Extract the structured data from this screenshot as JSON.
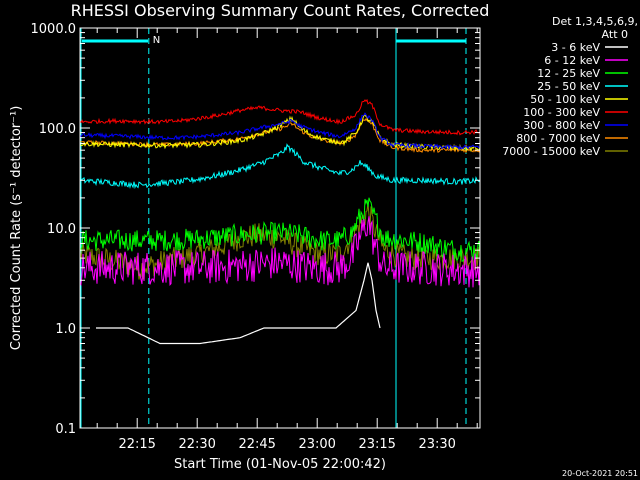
{
  "chart_data": {
    "type": "line",
    "title": "RHESSI Observing Summary Count Rates, Corrected",
    "xlabel": "Start Time (01-Nov-05 22:00:42)",
    "ylabel": "Corrected Count Rate (s⁻¹ detector⁻¹)",
    "yscale": "log",
    "ylim": [
      0.1,
      1000.0
    ],
    "xlim_minutes": [
      0,
      100
    ],
    "x_ticks": [
      {
        "label": "22:15",
        "minute": 14.3
      },
      {
        "label": "22:30",
        "minute": 29.3
      },
      {
        "label": "22:45",
        "minute": 44.3
      },
      {
        "label": "23:00",
        "minute": 59.3
      },
      {
        "label": "23:15",
        "minute": 74.3
      },
      {
        "label": "23:30",
        "minute": 89.3
      }
    ],
    "y_ticks": [
      "0.1",
      "1.0",
      "10.0",
      "100.0",
      "1000.0"
    ],
    "legend_header": [
      "Det 1,3,4,5,6,9,",
      "Att 0"
    ],
    "legend_position": "top-right, outside plot",
    "series": [
      {
        "name": "3 - 6 keV",
        "color": "#ffffff",
        "points": [
          [
            4,
            1.0
          ],
          [
            12,
            1.0
          ],
          [
            20,
            0.7
          ],
          [
            30,
            0.7
          ],
          [
            40,
            0.8
          ],
          [
            46,
            1.0
          ],
          [
            52,
            1.0
          ],
          [
            58,
            1.0
          ],
          [
            64,
            1.0
          ],
          [
            69,
            1.5
          ],
          [
            71,
            3.0
          ],
          [
            72,
            4.5
          ],
          [
            73,
            3.0
          ],
          [
            74,
            1.5
          ],
          [
            75,
            1.0
          ]
        ]
      },
      {
        "name": "6 - 12 keV",
        "color": "#ff00ff",
        "points": [
          [
            0,
            4.0
          ],
          [
            10,
            4.0
          ],
          [
            20,
            4.0
          ],
          [
            30,
            4.0
          ],
          [
            40,
            4.2
          ],
          [
            50,
            4.5
          ],
          [
            58,
            4.0
          ],
          [
            65,
            4.0
          ],
          [
            68,
            5.0
          ],
          [
            70,
            8.0
          ],
          [
            72,
            12.0
          ],
          [
            74,
            6.0
          ],
          [
            76,
            4.0
          ],
          [
            85,
            4.0
          ],
          [
            95,
            3.8
          ],
          [
            100,
            3.8
          ]
        ]
      },
      {
        "name": "12 - 25 keV",
        "color": "#00ff00",
        "points": [
          [
            0,
            7.5
          ],
          [
            10,
            7.5
          ],
          [
            20,
            7.5
          ],
          [
            30,
            7.8
          ],
          [
            40,
            8.5
          ],
          [
            50,
            9.0
          ],
          [
            55,
            8.5
          ],
          [
            60,
            7.5
          ],
          [
            65,
            7.5
          ],
          [
            68,
            9.0
          ],
          [
            70,
            13.0
          ],
          [
            72,
            17.0
          ],
          [
            74,
            12.0
          ],
          [
            76,
            8.0
          ],
          [
            82,
            7.5
          ],
          [
            87,
            7.0
          ],
          [
            90,
            6.5
          ],
          [
            95,
            6.0
          ],
          [
            100,
            6.0
          ]
        ]
      },
      {
        "name": "25 - 50 keV",
        "color": "#00ffff",
        "points": [
          [
            0,
            30
          ],
          [
            5,
            29
          ],
          [
            10,
            28
          ],
          [
            15,
            27
          ],
          [
            20,
            28
          ],
          [
            25,
            29
          ],
          [
            30,
            31
          ],
          [
            35,
            34
          ],
          [
            40,
            38
          ],
          [
            45,
            44
          ],
          [
            50,
            55
          ],
          [
            52,
            65
          ],
          [
            54,
            55
          ],
          [
            56,
            46
          ],
          [
            60,
            40
          ],
          [
            65,
            35
          ],
          [
            68,
            38
          ],
          [
            70,
            45
          ],
          [
            72,
            40
          ],
          [
            74,
            33
          ],
          [
            78,
            30
          ],
          [
            85,
            30
          ],
          [
            95,
            29
          ],
          [
            100,
            30
          ]
        ]
      },
      {
        "name": "50 - 100 keV",
        "color": "#ffff00",
        "points": [
          [
            0,
            70
          ],
          [
            10,
            68
          ],
          [
            20,
            67
          ],
          [
            30,
            68
          ],
          [
            40,
            75
          ],
          [
            45,
            85
          ],
          [
            50,
            105
          ],
          [
            53,
            125
          ],
          [
            55,
            100
          ],
          [
            58,
            85
          ],
          [
            62,
            75
          ],
          [
            66,
            72
          ],
          [
            69,
            90
          ],
          [
            71,
            130
          ],
          [
            73,
            115
          ],
          [
            75,
            80
          ],
          [
            78,
            68
          ],
          [
            85,
            65
          ],
          [
            95,
            63
          ],
          [
            100,
            62
          ]
        ]
      },
      {
        "name": "100 - 300 keV",
        "color": "#ff0000",
        "points": [
          [
            0,
            115
          ],
          [
            10,
            118
          ],
          [
            20,
            115
          ],
          [
            25,
            118
          ],
          [
            30,
            125
          ],
          [
            35,
            135
          ],
          [
            40,
            150
          ],
          [
            45,
            160
          ],
          [
            50,
            150
          ],
          [
            55,
            145
          ],
          [
            60,
            125
          ],
          [
            65,
            115
          ],
          [
            69,
            135
          ],
          [
            71,
            190
          ],
          [
            73,
            170
          ],
          [
            75,
            110
          ],
          [
            78,
            96
          ],
          [
            85,
            92
          ],
          [
            95,
            90
          ],
          [
            100,
            92
          ]
        ]
      },
      {
        "name": "300 - 800 keV",
        "color": "#0000ff",
        "points": [
          [
            0,
            85
          ],
          [
            10,
            83
          ],
          [
            20,
            80
          ],
          [
            25,
            80
          ],
          [
            30,
            82
          ],
          [
            35,
            86
          ],
          [
            40,
            90
          ],
          [
            45,
            100
          ],
          [
            50,
            110
          ],
          [
            53,
            118
          ],
          [
            55,
            105
          ],
          [
            60,
            90
          ],
          [
            65,
            82
          ],
          [
            69,
            100
          ],
          [
            71,
            140
          ],
          [
            73,
            120
          ],
          [
            75,
            80
          ],
          [
            78,
            68
          ],
          [
            85,
            66
          ],
          [
            95,
            64
          ],
          [
            100,
            65
          ]
        ]
      },
      {
        "name": "800 - 7000 keV",
        "color": "#ff8c00",
        "points": [
          [
            0,
            72
          ],
          [
            10,
            70
          ],
          [
            20,
            68
          ],
          [
            30,
            70
          ],
          [
            40,
            78
          ],
          [
            45,
            88
          ],
          [
            50,
            98
          ],
          [
            53,
            110
          ],
          [
            55,
            95
          ],
          [
            58,
            82
          ],
          [
            62,
            74
          ],
          [
            66,
            70
          ],
          [
            69,
            86
          ],
          [
            71,
            125
          ],
          [
            73,
            110
          ],
          [
            75,
            75
          ],
          [
            78,
            64
          ],
          [
            85,
            60
          ],
          [
            95,
            60
          ],
          [
            100,
            60
          ]
        ]
      },
      {
        "name": "7000 - 15000 keV",
        "color": "#808000",
        "points": [
          [
            0,
            5.5
          ],
          [
            5,
            5.0
          ],
          [
            10,
            4.5
          ],
          [
            15,
            4.0
          ],
          [
            20,
            4.5
          ],
          [
            25,
            5.0
          ],
          [
            30,
            5.5
          ],
          [
            35,
            6.5
          ],
          [
            40,
            8.0
          ],
          [
            45,
            8.5
          ],
          [
            50,
            8.0
          ],
          [
            55,
            6.5
          ],
          [
            60,
            5.5
          ],
          [
            65,
            5.5
          ],
          [
            68,
            8.0
          ],
          [
            70,
            11.0
          ],
          [
            72,
            15.0
          ],
          [
            74,
            9.0
          ],
          [
            76,
            6.0
          ],
          [
            82,
            5.0
          ],
          [
            90,
            5.0
          ],
          [
            100,
            5.0
          ]
        ]
      }
    ],
    "annotations": [
      {
        "text": "N",
        "color": "#00ffff"
      },
      {
        "text": "20-Oct-2021 20:51",
        "color": "#ffffff"
      }
    ]
  }
}
